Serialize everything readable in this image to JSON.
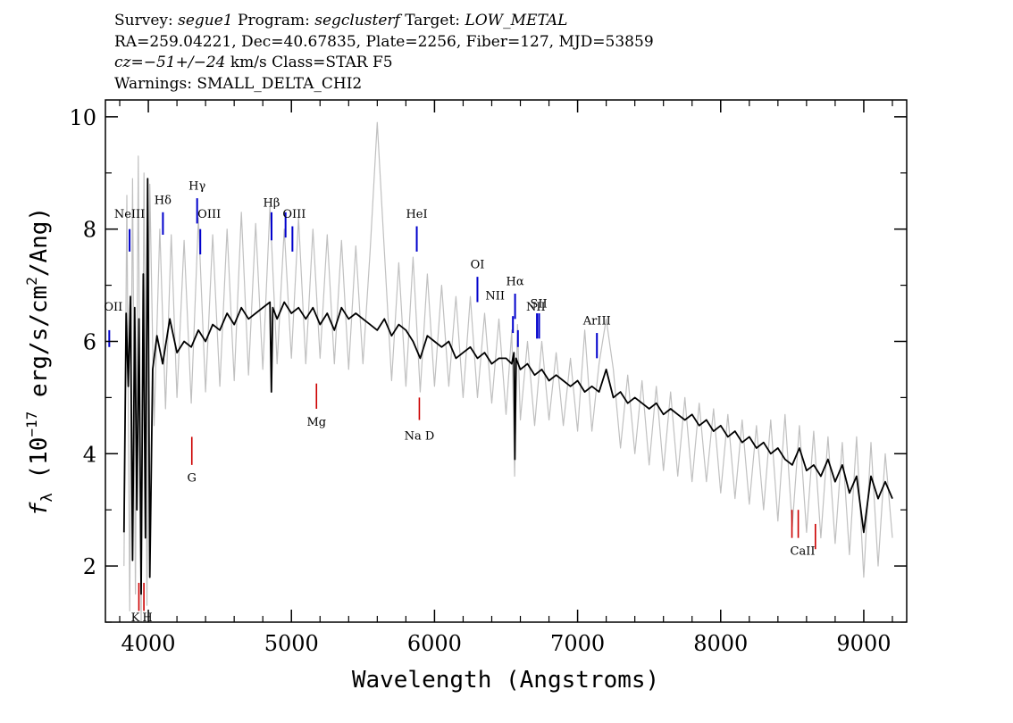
{
  "header": {
    "survey_label": "Survey:",
    "survey": "segue1",
    "program_label": "Program:",
    "program": "segclusterf",
    "target_label": "Target:",
    "target": "LOW_METAL",
    "coords": "RA=259.04221, Dec=40.67835, Plate=2256, Fiber=127, MJD=53859",
    "cz_label": "cz=",
    "cz_value": "−51+/−24",
    "cz_unit_class": "km/s Class=STAR F5",
    "warnings": "Warnings: SMALL_DELTA_CHI2"
  },
  "chart_data": {
    "type": "line",
    "xlabel": "Wavelength (Angstroms)",
    "ylabel_prefix": "f",
    "ylabel_sub": "λ",
    "ylabel_rest": " (10",
    "ylabel_exp": "−17",
    "ylabel_units": " erg/s/cm",
    "ylabel_exp2": "2",
    "ylabel_end": "/Ang)",
    "xlim": [
      3700,
      9300
    ],
    "ylim": [
      1,
      10.3
    ],
    "x_ticks": [
      4000,
      5000,
      6000,
      7000,
      8000,
      9000
    ],
    "y_ticks": [
      2,
      4,
      6,
      8,
      10
    ],
    "series": [
      {
        "role": "raw flux",
        "color": "#c0c0c0",
        "x": [
          3830,
          3850,
          3870,
          3890,
          3910,
          3930,
          3950,
          3970,
          3990,
          4010,
          4040,
          4080,
          4120,
          4160,
          4200,
          4250,
          4300,
          4350,
          4400,
          4450,
          4500,
          4550,
          4600,
          4650,
          4700,
          4750,
          4800,
          4850,
          4900,
          4950,
          5000,
          5050,
          5100,
          5150,
          5200,
          5250,
          5300,
          5350,
          5400,
          5450,
          5500,
          5550,
          5600,
          5650,
          5700,
          5750,
          5800,
          5850,
          5900,
          5950,
          6000,
          6050,
          6100,
          6150,
          6200,
          6250,
          6300,
          6350,
          6400,
          6450,
          6500,
          6540,
          6560,
          6580,
          6600,
          6650,
          6700,
          6750,
          6800,
          6850,
          6900,
          6950,
          7000,
          7050,
          7100,
          7150,
          7200,
          7250,
          7300,
          7350,
          7400,
          7450,
          7500,
          7550,
          7600,
          7650,
          7700,
          7750,
          7800,
          7850,
          7900,
          7950,
          8000,
          8050,
          8100,
          8150,
          8200,
          8250,
          8300,
          8350,
          8400,
          8450,
          8500,
          8550,
          8600,
          8650,
          8700,
          8750,
          8800,
          8850,
          8900,
          8950,
          9000,
          9050,
          9100,
          9150,
          9200
        ],
        "y": [
          2.0,
          8.6,
          1.2,
          8.9,
          1.5,
          9.3,
          1.0,
          9.0,
          1.3,
          8.8,
          4.5,
          8.0,
          4.8,
          7.9,
          5.0,
          7.8,
          4.9,
          8.2,
          5.1,
          7.9,
          5.2,
          8.0,
          5.3,
          8.3,
          5.4,
          8.1,
          5.5,
          8.4,
          5.6,
          8.0,
          5.7,
          8.2,
          5.6,
          8.0,
          5.7,
          7.9,
          5.6,
          7.8,
          5.5,
          7.7,
          5.6,
          7.6,
          9.9,
          7.6,
          5.3,
          7.4,
          5.2,
          7.5,
          5.1,
          7.2,
          5.2,
          7.0,
          5.2,
          6.8,
          5.0,
          6.8,
          5.0,
          6.5,
          4.9,
          6.4,
          4.7,
          6.2,
          3.6,
          6.3,
          4.6,
          6.0,
          4.5,
          6.0,
          4.6,
          5.8,
          4.5,
          5.7,
          4.4,
          6.2,
          4.4,
          5.6,
          6.4,
          5.5,
          4.1,
          5.4,
          4.0,
          5.3,
          3.8,
          5.2,
          3.7,
          5.1,
          3.6,
          5.0,
          3.5,
          4.9,
          3.5,
          4.8,
          3.3,
          4.7,
          3.2,
          4.6,
          3.1,
          4.5,
          3.0,
          4.6,
          2.8,
          4.7,
          2.7,
          4.5,
          2.6,
          4.4,
          2.5,
          4.3,
          2.4,
          4.2,
          2.2,
          4.3,
          1.8,
          4.2,
          2.0,
          4.0,
          2.5
        ]
      },
      {
        "role": "smoothed flux",
        "color": "#000000",
        "x": [
          3830,
          3845,
          3860,
          3875,
          3890,
          3905,
          3920,
          3935,
          3950,
          3965,
          3980,
          3995,
          4010,
          4030,
          4060,
          4100,
          4150,
          4200,
          4250,
          4300,
          4350,
          4400,
          4450,
          4500,
          4550,
          4600,
          4650,
          4700,
          4750,
          4800,
          4850,
          4860,
          4870,
          4900,
          4950,
          5000,
          5050,
          5100,
          5150,
          5200,
          5250,
          5300,
          5350,
          5400,
          5450,
          5500,
          5550,
          5600,
          5650,
          5700,
          5750,
          5800,
          5850,
          5900,
          5950,
          6000,
          6050,
          6100,
          6150,
          6200,
          6250,
          6300,
          6350,
          6400,
          6450,
          6500,
          6540,
          6555,
          6562,
          6570,
          6600,
          6650,
          6700,
          6750,
          6800,
          6850,
          6900,
          6950,
          7000,
          7050,
          7100,
          7150,
          7200,
          7250,
          7300,
          7350,
          7400,
          7450,
          7500,
          7550,
          7600,
          7650,
          7700,
          7750,
          7800,
          7850,
          7900,
          7950,
          8000,
          8050,
          8100,
          8150,
          8200,
          8250,
          8300,
          8350,
          8400,
          8450,
          8500,
          8550,
          8600,
          8650,
          8700,
          8750,
          8800,
          8850,
          8900,
          8950,
          9000,
          9050,
          9100,
          9150,
          9200
        ],
        "y": [
          2.6,
          6.5,
          5.2,
          6.8,
          2.1,
          6.6,
          3.0,
          6.4,
          1.5,
          7.2,
          2.5,
          8.9,
          1.8,
          5.5,
          6.1,
          5.6,
          6.4,
          5.8,
          6.0,
          5.9,
          6.2,
          6.0,
          6.3,
          6.2,
          6.5,
          6.3,
          6.6,
          6.4,
          6.5,
          6.6,
          6.7,
          5.1,
          6.6,
          6.4,
          6.7,
          6.5,
          6.6,
          6.4,
          6.6,
          6.3,
          6.5,
          6.2,
          6.6,
          6.4,
          6.5,
          6.4,
          6.3,
          6.2,
          6.4,
          6.1,
          6.3,
          6.2,
          6.0,
          5.7,
          6.1,
          6.0,
          5.9,
          6.0,
          5.7,
          5.8,
          5.9,
          5.7,
          5.8,
          5.6,
          5.7,
          5.7,
          5.6,
          5.8,
          3.9,
          5.7,
          5.5,
          5.6,
          5.4,
          5.5,
          5.3,
          5.4,
          5.3,
          5.2,
          5.3,
          5.1,
          5.2,
          5.1,
          5.5,
          5.0,
          5.1,
          4.9,
          5.0,
          4.9,
          4.8,
          4.9,
          4.7,
          4.8,
          4.7,
          4.6,
          4.7,
          4.5,
          4.6,
          4.4,
          4.5,
          4.3,
          4.4,
          4.2,
          4.3,
          4.1,
          4.2,
          4.0,
          4.1,
          3.9,
          3.8,
          4.1,
          3.7,
          3.8,
          3.6,
          3.9,
          3.5,
          3.8,
          3.3,
          3.6,
          2.6,
          3.6,
          3.2,
          3.5,
          3.2
        ]
      }
    ],
    "emission_lines": [
      {
        "label": "OII",
        "x": 3727,
        "color": "#0000cc"
      },
      {
        "label": "NeIII",
        "x": 3869,
        "color": "#0000cc"
      },
      {
        "label": "Hδ",
        "x": 4102,
        "color": "#0000cc"
      },
      {
        "label": "Hγ",
        "x": 4341,
        "color": "#0000cc"
      },
      {
        "label": "OIII",
        "x": 4363,
        "color": "#0000cc"
      },
      {
        "label": "Hβ",
        "x": 4861,
        "color": "#0000cc"
      },
      {
        "label": "OIII",
        "x": 4959,
        "color": "#0000cc"
      },
      {
        "label": "OIII",
        "x": 5007,
        "color": "#0000cc"
      },
      {
        "label": "HeI",
        "x": 5876,
        "color": "#0000cc"
      },
      {
        "label": "OI",
        "x": 6300,
        "color": "#0000cc"
      },
      {
        "label": "NII",
        "x": 6548,
        "color": "#0000cc"
      },
      {
        "label": "Hα",
        "x": 6563,
        "color": "#0000cc"
      },
      {
        "label": "NII",
        "x": 6583,
        "color": "#0000cc"
      },
      {
        "label": "SII",
        "x": 6716,
        "color": "#0000cc"
      },
      {
        "label": "SII",
        "x": 6731,
        "color": "#0000cc"
      },
      {
        "label": "ArIII",
        "x": 7135,
        "color": "#0000cc"
      }
    ],
    "absorption_lines": [
      {
        "label": "K",
        "x": 3934,
        "color": "#cc0000"
      },
      {
        "label": "H",
        "x": 3969,
        "color": "#cc0000"
      },
      {
        "label": "G",
        "x": 4304,
        "color": "#cc0000"
      },
      {
        "label": "Mg",
        "x": 5175,
        "color": "#cc0000"
      },
      {
        "label": "Na D",
        "x": 5894,
        "color": "#cc0000"
      },
      {
        "label": "CaII",
        "x": 8498,
        "color": "#cc0000"
      },
      {
        "label": "CaII",
        "x": 8542,
        "color": "#cc0000"
      },
      {
        "label": "CaII",
        "x": 8662,
        "color": "#cc0000"
      }
    ]
  }
}
